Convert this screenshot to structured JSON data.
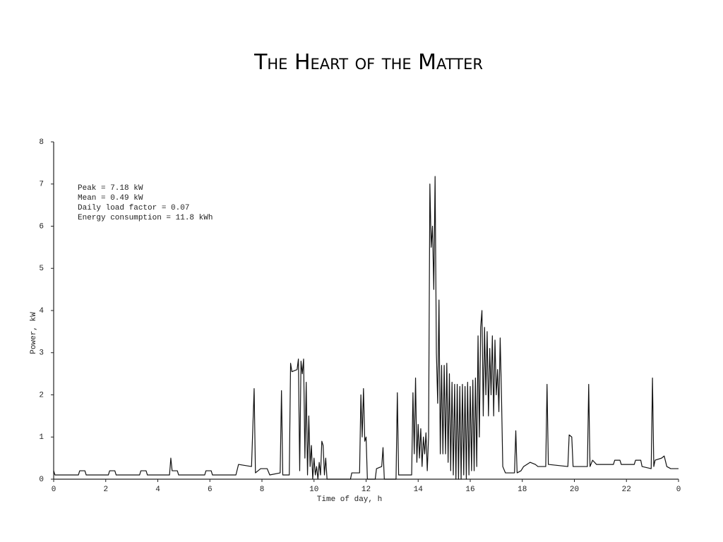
{
  "chart_data": {
    "type": "line",
    "title": "The Heart of the Matter",
    "xlabel": "Time of day, h",
    "ylabel": "Power, kW",
    "annotations": [
      "Peak = 7.18 kW",
      "Mean = 0.49 kW",
      "Daily load factor = 0.07",
      "Energy consumption = 11.8 kWh"
    ],
    "xlim": [
      0,
      24
    ],
    "ylim": [
      0,
      8
    ],
    "xticks": [
      0,
      2,
      4,
      6,
      8,
      10,
      12,
      14,
      16,
      18,
      20,
      22,
      {
        "value": 24,
        "label": "0"
      }
    ],
    "yticks": [
      0,
      1,
      2,
      3,
      4,
      5,
      6,
      7,
      8
    ],
    "color": "#111111",
    "x": [
      0,
      0.05,
      0.95,
      1.0,
      1.2,
      1.25,
      2.1,
      2.15,
      2.35,
      2.4,
      3.3,
      3.35,
      3.55,
      3.6,
      4.45,
      4.5,
      4.55,
      4.75,
      4.8,
      5.8,
      5.85,
      6.05,
      6.1,
      7.0,
      7.1,
      7.6,
      7.7,
      7.75,
      7.95,
      8.2,
      8.3,
      8.7,
      8.75,
      8.8,
      9.05,
      9.1,
      9.15,
      9.35,
      9.4,
      9.45,
      9.5,
      9.55,
      9.6,
      9.65,
      9.7,
      9.75,
      9.8,
      9.85,
      9.9,
      9.95,
      10.0,
      10.05,
      10.1,
      10.15,
      10.2,
      10.25,
      10.3,
      10.35,
      10.4,
      10.45,
      10.5,
      11.4,
      11.45,
      11.75,
      11.8,
      11.85,
      11.9,
      11.95,
      12.0,
      12.05,
      12.35,
      12.4,
      12.6,
      12.65,
      12.7,
      13.15,
      13.2,
      13.25,
      13.75,
      13.8,
      13.85,
      13.9,
      13.95,
      14.0,
      14.05,
      14.1,
      14.15,
      14.2,
      14.25,
      14.3,
      14.35,
      14.4,
      14.45,
      14.5,
      14.55,
      14.6,
      14.65,
      14.7,
      14.75,
      14.8,
      14.85,
      14.9,
      14.95,
      15.0,
      15.05,
      15.1,
      15.15,
      15.2,
      15.25,
      15.3,
      15.35,
      15.4,
      15.45,
      15.5,
      15.55,
      15.6,
      15.65,
      15.7,
      15.75,
      15.8,
      15.85,
      15.9,
      15.95,
      16.0,
      16.05,
      16.1,
      16.15,
      16.2,
      16.25,
      16.3,
      16.35,
      16.4,
      16.45,
      16.5,
      16.55,
      16.6,
      16.65,
      16.7,
      16.75,
      16.8,
      16.85,
      16.9,
      16.95,
      17.0,
      17.05,
      17.1,
      17.15,
      17.2,
      17.25,
      17.35,
      17.7,
      17.75,
      17.8,
      17.95,
      18.05,
      18.3,
      18.5,
      18.6,
      18.9,
      18.95,
      19.0,
      19.75,
      19.8,
      19.9,
      19.95,
      20.5,
      20.55,
      20.6,
      20.7,
      20.85,
      21.5,
      21.55,
      21.75,
      21.8,
      22.3,
      22.35,
      22.55,
      22.6,
      22.95,
      23.0,
      23.05,
      23.1,
      23.35,
      23.45,
      23.55,
      23.7,
      24.0
    ],
    "values": [
      0.2,
      0.1,
      0.1,
      0.2,
      0.2,
      0.1,
      0.1,
      0.2,
      0.2,
      0.1,
      0.1,
      0.2,
      0.2,
      0.1,
      0.1,
      0.5,
      0.2,
      0.2,
      0.1,
      0.1,
      0.2,
      0.2,
      0.1,
      0.1,
      0.35,
      0.3,
      2.15,
      0.15,
      0.25,
      0.25,
      0.1,
      0.15,
      2.1,
      0.1,
      0.1,
      2.75,
      2.55,
      2.6,
      2.85,
      0.2,
      2.8,
      2.5,
      2.85,
      0.5,
      2.3,
      0.1,
      1.5,
      0.3,
      0.8,
      0,
      0.5,
      0.1,
      0.3,
      0,
      0.4,
      0.1,
      0.9,
      0.8,
      0.1,
      0.5,
      0,
      0,
      0.15,
      0.15,
      2.0,
      1.0,
      2.15,
      0.9,
      1.0,
      0,
      0,
      0.25,
      0.3,
      0.75,
      0,
      0,
      2.05,
      0.1,
      0.1,
      2.05,
      0.6,
      2.4,
      0.4,
      1.3,
      0.5,
      1.2,
      0.3,
      1.0,
      0.6,
      1.1,
      0.2,
      1.0,
      7.0,
      5.5,
      6.0,
      4.5,
      7.18,
      3.0,
      1.8,
      4.25,
      0.6,
      2.7,
      0.6,
      2.7,
      0.6,
      2.75,
      0.4,
      2.5,
      0.2,
      2.3,
      0.1,
      2.25,
      0,
      2.25,
      0,
      2.2,
      0,
      2.25,
      0.1,
      2.2,
      0,
      2.3,
      0.1,
      2.2,
      0.2,
      2.35,
      0.2,
      2.4,
      0.3,
      3.4,
      1.0,
      3.6,
      4.0,
      1.5,
      3.6,
      2.0,
      3.5,
      1.5,
      3.1,
      2.0,
      3.4,
      1.5,
      3.3,
      2.0,
      2.6,
      1.6,
      3.35,
      2.0,
      0.3,
      0.15,
      0.15,
      1.15,
      0.15,
      0.2,
      0.3,
      0.4,
      0.35,
      0.3,
      0.3,
      2.25,
      0.35,
      0.3,
      1.05,
      1.0,
      0.3,
      0.3,
      2.25,
      0.3,
      0.45,
      0.35,
      0.35,
      0.45,
      0.45,
      0.35,
      0.35,
      0.45,
      0.45,
      0.3,
      0.25,
      2.4,
      0.3,
      0.45,
      0.5,
      0.55,
      0.3,
      0.25,
      0.25
    ]
  }
}
